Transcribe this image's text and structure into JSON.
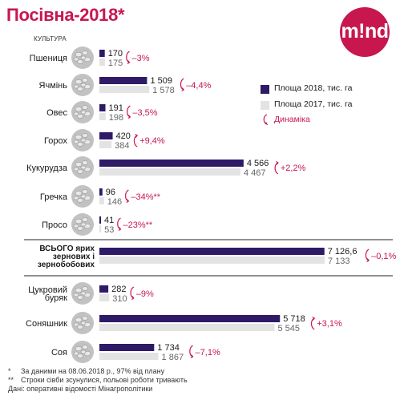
{
  "header": {
    "title": "Посівна-2018*",
    "logo_text": "m!nd"
  },
  "column_header": "КУЛЬТУРА",
  "legend": {
    "area_2018": "Площа 2018, тис. га",
    "area_2017": "Площа 2017, тис. га",
    "dynamics": "Динаміка"
  },
  "colors": {
    "area_2018": "#2e1a66",
    "area_2017": "#e3e3e3",
    "accent": "#c8174f",
    "thumb": "#c2c2c2"
  },
  "chart_data": {
    "type": "bar",
    "orientation": "horizontal",
    "series": [
      {
        "name": "Площа 2018, тис. га",
        "values": [
          170,
          1509,
          191,
          420,
          4566,
          96,
          41,
          7126.6,
          282,
          5718,
          1734
        ]
      },
      {
        "name": "Площа 2017, тис. га",
        "values": [
          175,
          1578,
          198,
          384,
          4467,
          146,
          53,
          7133,
          310,
          5545,
          1867
        ]
      }
    ],
    "categories": [
      {
        "label": [
          "Пшениця"
        ],
        "v2018": 170,
        "v2017": 175,
        "t2018": "170",
        "t2017": "175",
        "change": "–3%",
        "trend": "down",
        "thumb": "wheat-grain-icon"
      },
      {
        "label": [
          "Ячмінь"
        ],
        "v2018": 1509,
        "v2017": 1578,
        "t2018": "1 509",
        "t2017": "1 578",
        "change": "–4,4%",
        "trend": "down",
        "thumb": "barley-grain-icon"
      },
      {
        "label": [
          "Овес"
        ],
        "v2018": 191,
        "v2017": 198,
        "t2018": "191",
        "t2017": "198",
        "change": "–3,5%",
        "trend": "down",
        "thumb": "oat-grain-icon"
      },
      {
        "label": [
          "Горох"
        ],
        "v2018": 420,
        "v2017": 384,
        "t2018": "420",
        "t2017": "384",
        "change": "+9,4%",
        "trend": "up",
        "thumb": "pea-icon"
      },
      {
        "label": [
          "Кукурудза"
        ],
        "v2018": 4566,
        "v2017": 4467,
        "t2018": "4 566",
        "t2017": "4 467",
        "change": "+2,2%",
        "trend": "up",
        "thumb": "corn-icon"
      },
      {
        "label": [
          "Гречка"
        ],
        "v2018": 96,
        "v2017": 146,
        "t2018": "96",
        "t2017": "146",
        "change": "–34%**",
        "trend": "down",
        "thumb": "buckwheat-icon"
      },
      {
        "label": [
          "Просо"
        ],
        "v2018": 41,
        "v2017": 53,
        "t2018": "41",
        "t2017": "53",
        "change": "–23%**",
        "trend": "down",
        "thumb": "millet-icon"
      },
      {
        "label": [
          "ВСЬОГО ярих",
          "зернових і",
          "зернобобових"
        ],
        "v2018": 7126.6,
        "v2017": 7133,
        "t2018": "7 126,6",
        "t2017": "7 133",
        "change": "–0,1%",
        "trend": "down",
        "thumb": "",
        "bold": true
      },
      {
        "label": [
          "Цукровий",
          "буряк"
        ],
        "v2018": 282,
        "v2017": 310,
        "t2018": "282",
        "t2017": "310",
        "change": "–9%",
        "trend": "down",
        "thumb": "sugar-beet-icon"
      },
      {
        "label": [
          "Соняшник"
        ],
        "v2018": 5718,
        "v2017": 5545,
        "t2018": "5 718",
        "t2017": "5 545",
        "change": "+3,1%",
        "trend": "up",
        "thumb": "sunflower-seed-icon"
      },
      {
        "label": [
          "Соя"
        ],
        "v2018": 1734,
        "v2017": 1867,
        "t2018": "1 734",
        "t2017": "1 867",
        "change": "–7,1%",
        "trend": "down",
        "thumb": "soybean-icon"
      }
    ],
    "xlim": [
      0,
      7133
    ],
    "grid": false
  },
  "notes": [
    {
      "mark": "*",
      "text": "За даними на 08.06.2018 р., 97% від плану"
    },
    {
      "mark": "**",
      "text": "Строки сівби зсунулися, польові роботи тривають"
    },
    {
      "mark": "",
      "text": "Дані: оперативні відомості Мінагрополітики"
    }
  ]
}
